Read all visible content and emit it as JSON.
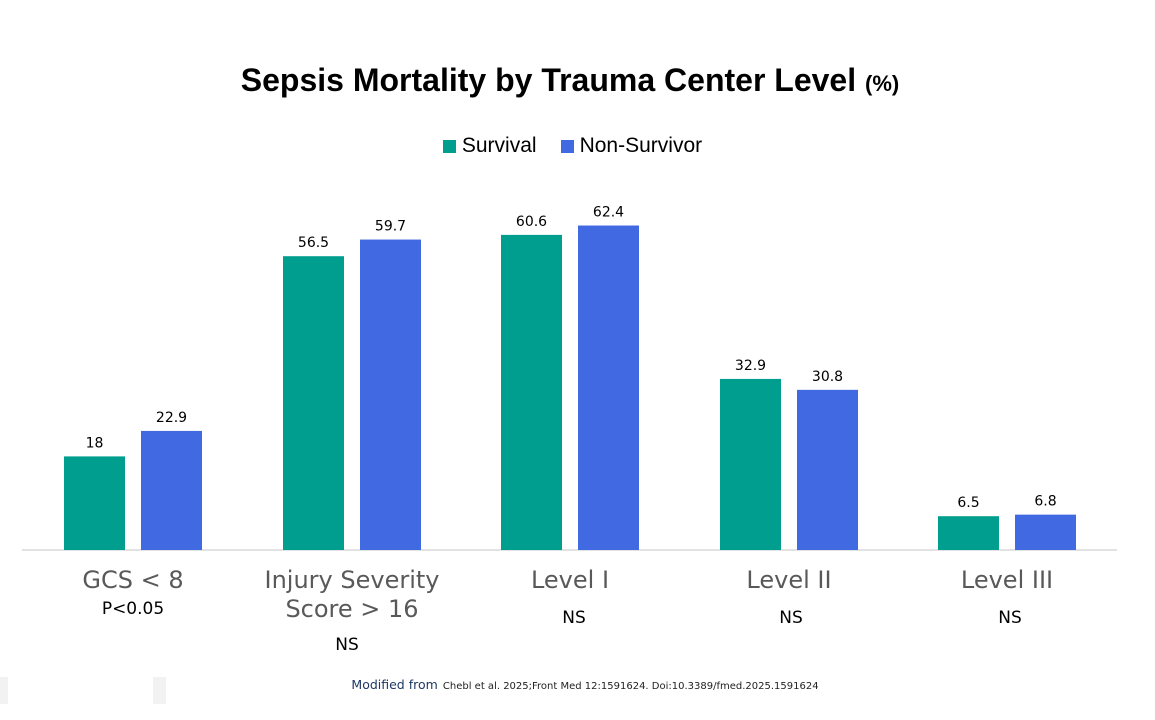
{
  "title": "Sepsis Mortality by Trauma Center Level",
  "title_unit": "(%)",
  "legend": [
    {
      "name": "Survival",
      "color": "#009E8E"
    },
    {
      "name": "Non-Survivor",
      "color": "#4169E1"
    }
  ],
  "chart_data": {
    "type": "bar",
    "title": "Sepsis Mortality by Trauma Center Level (%)",
    "categories": [
      "GCS < 8",
      "Injury Severity Score > 16",
      "Level I",
      "Level II",
      "Level III"
    ],
    "series": [
      {
        "name": "Survival",
        "values": [
          18,
          56.5,
          60.6,
          32.9,
          6.5
        ],
        "labels": [
          "18",
          "56.5",
          "60.6",
          "32.9",
          "6.5"
        ]
      },
      {
        "name": "Non-Survivor",
        "values": [
          22.9,
          59.7,
          62.4,
          30.8,
          6.8
        ],
        "labels": [
          "22.9",
          "59.7",
          "62.4",
          "30.8",
          "6.8"
        ]
      }
    ],
    "colors": [
      "#009E8E",
      "#4169E1"
    ],
    "ylim": [
      0,
      70
    ],
    "grid": false,
    "legend_position": "top"
  },
  "category_labels": [
    {
      "lines": [
        "GCS < 8"
      ],
      "significance": "P<0.05"
    },
    {
      "lines": [
        "Injury Severity",
        "Score > 16"
      ],
      "significance": "NS"
    },
    {
      "lines": [
        "Level I"
      ],
      "significance": "NS"
    },
    {
      "lines": [
        "Level II"
      ],
      "significance": "NS"
    },
    {
      "lines": [
        "Level III"
      ],
      "significance": "NS"
    }
  ],
  "source": {
    "lead": "Modified from",
    "citation": "Chebl et al. 2025;Front Med 12:1591624. Doi:10.3389/fmed.2025.1591624"
  }
}
